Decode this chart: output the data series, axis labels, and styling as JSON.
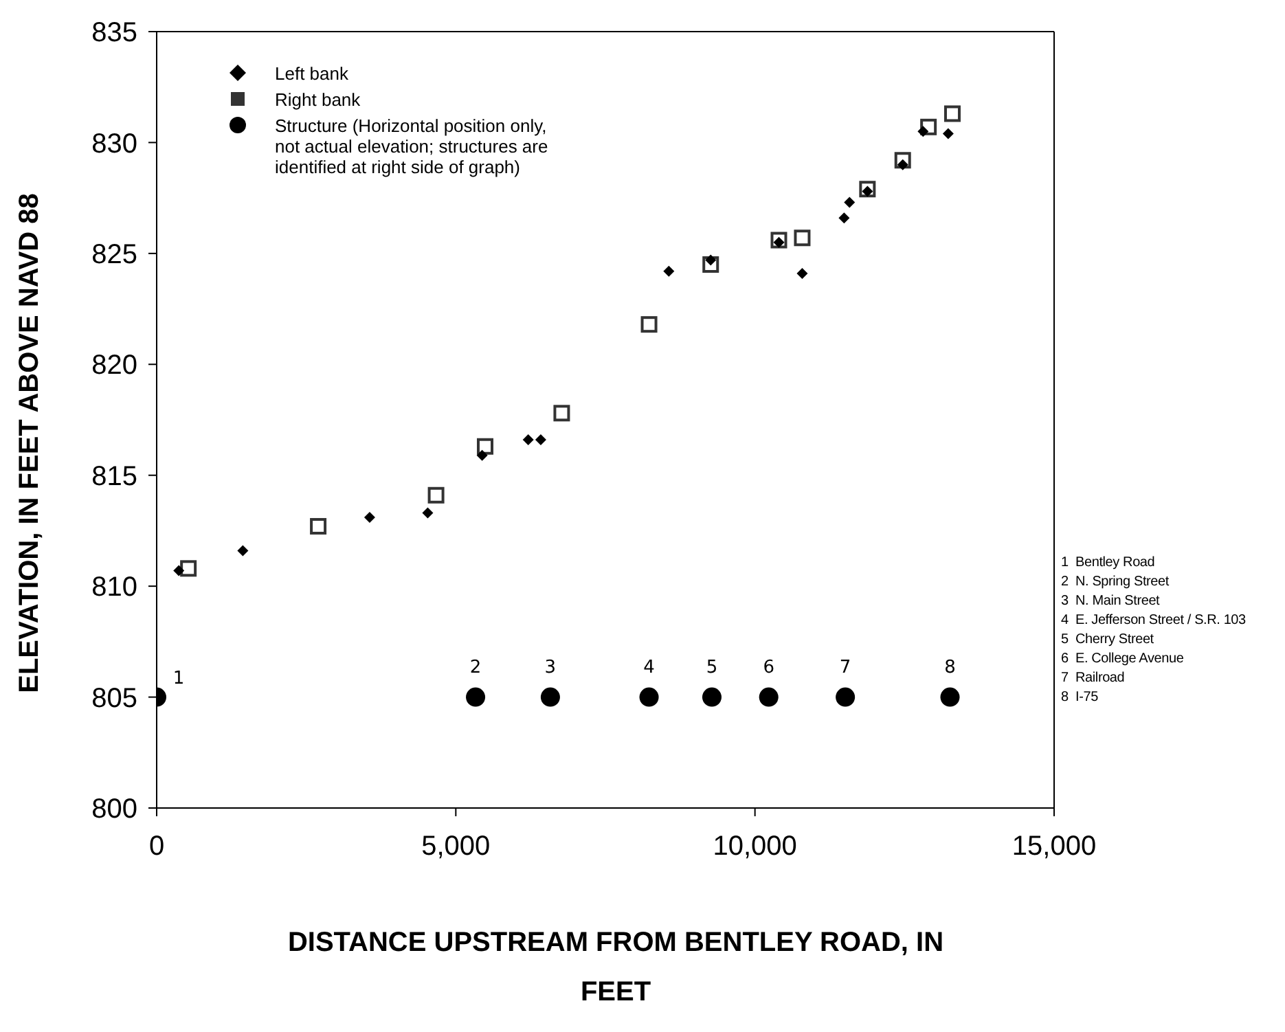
{
  "chart_data": {
    "type": "scatter",
    "xlabel": "DISTANCE UPSTREAM FROM BENTLEY ROAD, IN FEET",
    "ylabel": "ELEVATION, IN FEET ABOVE NAVD 88",
    "xlim": [
      0,
      15000
    ],
    "xticks": [
      0,
      {
        "value": 5000,
        "label": "5,000"
      },
      {
        "value": 10000,
        "label": "10,000"
      },
      {
        "value": 15000,
        "label": "15,000"
      }
    ],
    "ylim": [
      800,
      835
    ],
    "yticks": [
      800,
      805,
      810,
      815,
      820,
      825,
      830,
      835
    ],
    "legend": "top left",
    "series": [
      {
        "name": "Left bank",
        "color": "#000000",
        "marker": "diamond",
        "x": [
          370,
          1440,
          3560,
          4530,
          5440,
          6210,
          6420,
          8560,
          9260,
          10400,
          10790,
          11490,
          11580,
          11880,
          12470,
          12810,
          13230
        ],
        "values": [
          810.7,
          811.6,
          813.1,
          813.3,
          815.9,
          816.6,
          816.6,
          824.2,
          824.7,
          825.5,
          824.1,
          826.6,
          827.3,
          827.8,
          829.0,
          830.5,
          830.4
        ]
      },
      {
        "name": "Right bank",
        "color": "#333333",
        "marker": "square",
        "x": [
          530,
          2700,
          4670,
          5490,
          6770,
          8230,
          9260,
          10400,
          10790,
          11880,
          12470,
          12900,
          13300
        ],
        "values": [
          810.8,
          812.7,
          814.1,
          816.3,
          817.8,
          821.8,
          824.5,
          825.6,
          825.7,
          827.9,
          829.2,
          830.7,
          831.3
        ]
      },
      {
        "name": "Structure (Horizontal position only, not actual elevation; structures are identified at right side of graph)",
        "color": "#000000",
        "marker": "circle",
        "x": [
          0,
          5330,
          6580,
          8230,
          9280,
          10230,
          11510,
          13260
        ],
        "values": [
          805,
          805,
          805,
          805,
          805,
          805,
          805,
          805
        ]
      }
    ],
    "annotations": [
      {
        "text": "1",
        "x": 0,
        "y": 805
      },
      {
        "text": "2",
        "x": 5330,
        "y": 805
      },
      {
        "text": "3",
        "x": 6580,
        "y": 805
      },
      {
        "text": "4",
        "x": 8230,
        "y": 805
      },
      {
        "text": "5",
        "x": 9280,
        "y": 805
      },
      {
        "text": "6",
        "x": 10230,
        "y": 805
      },
      {
        "text": "7",
        "x": 11510,
        "y": 805
      },
      {
        "text": "8",
        "x": 13260,
        "y": 805
      },
      "1  Bentley Road",
      "2  N. Spring Street",
      "3  N. Main Street",
      "4  E. Jefferson Street / S.R. 103",
      "5  Cherry Street",
      "6  E. College Avenue",
      "7  Railroad",
      "8  I-75"
    ]
  }
}
